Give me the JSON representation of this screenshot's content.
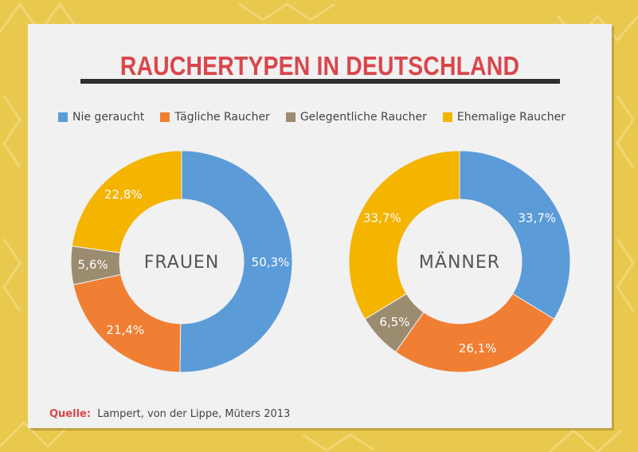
{
  "title": "RAUCHERTYPEN IN DEUTSCHLAND",
  "legend": [
    {
      "label": "Nie geraucht",
      "color": "#5B9BD8"
    },
    {
      "label": "Tägliche Raucher",
      "color": "#F07E33"
    },
    {
      "label": "Gelegentliche Raucher",
      "color": "#9C8C6F"
    },
    {
      "label": "Ehemalige Raucher",
      "color": "#F4B400"
    }
  ],
  "source": {
    "label": "Quelle:",
    "text": "Lampert, von der Lippe, Müters 2013"
  },
  "chart_data": [
    {
      "type": "pie",
      "title": "FRAUEN",
      "categories": [
        "Nie geraucht",
        "Tägliche Raucher",
        "Gelegentliche Raucher",
        "Ehemalige Raucher"
      ],
      "values": [
        50.3,
        21.4,
        5.6,
        22.8
      ],
      "labels": [
        "50,3%",
        "21,4%",
        "5,6%",
        "22,8%"
      ],
      "colors": [
        "#5B9BD8",
        "#F07E33",
        "#9C8C6F",
        "#F4B400"
      ]
    },
    {
      "type": "pie",
      "title": "MÄNNER",
      "categories": [
        "Nie geraucht",
        "Tägliche Raucher",
        "Gelegentliche Raucher",
        "Ehemalige Raucher"
      ],
      "values": [
        33.7,
        26.1,
        6.5,
        33.7
      ],
      "labels": [
        "33,7%",
        "26,1%",
        "6,5%",
        "33,7%"
      ],
      "colors": [
        "#5B9BD8",
        "#F07E33",
        "#9C8C6F",
        "#F4B400"
      ]
    }
  ]
}
